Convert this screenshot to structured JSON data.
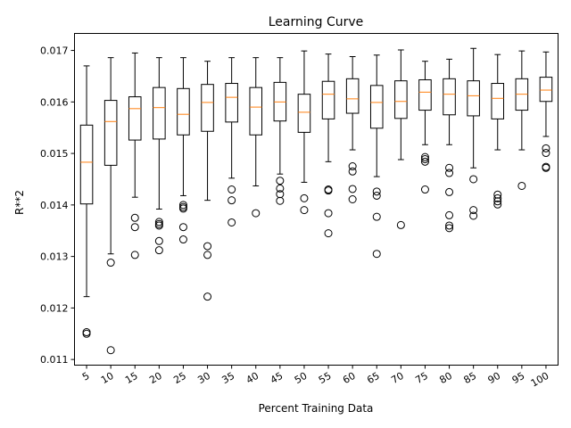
{
  "chart_data": {
    "type": "box",
    "title": "Learning Curve",
    "xlabel": "Percent Training Data",
    "ylabel": "R**2",
    "ylim": [
      0.01089,
      0.01733
    ],
    "yticks": [
      "0.011",
      "0.012",
      "0.013",
      "0.014",
      "0.015",
      "0.016",
      "0.017"
    ],
    "categories": [
      "5",
      "10",
      "15",
      "20",
      "25",
      "30",
      "35",
      "40",
      "45",
      "50",
      "55",
      "60",
      "65",
      "70",
      "75",
      "80",
      "85",
      "90",
      "95",
      "100"
    ],
    "boxes": [
      {
        "whislo": 0.01222,
        "q1": 0.01402,
        "med": 0.01483,
        "q3": 0.01555,
        "whishi": 0.0167,
        "fliers": [
          0.0115,
          0.01153
        ]
      },
      {
        "whislo": 0.01305,
        "q1": 0.01477,
        "med": 0.01562,
        "q3": 0.01603,
        "whishi": 0.01686,
        "fliers": [
          0.01288,
          0.01118
        ]
      },
      {
        "whislo": 0.01415,
        "q1": 0.01526,
        "med": 0.01587,
        "q3": 0.0161,
        "whishi": 0.01695,
        "fliers": [
          0.01375,
          0.01357,
          0.01303
        ]
      },
      {
        "whislo": 0.01392,
        "q1": 0.01528,
        "med": 0.01589,
        "q3": 0.01628,
        "whishi": 0.01686,
        "fliers": [
          0.01367,
          0.01363,
          0.0136,
          0.0133,
          0.01312
        ]
      },
      {
        "whislo": 0.01418,
        "q1": 0.01536,
        "med": 0.01576,
        "q3": 0.01626,
        "whishi": 0.01686,
        "fliers": [
          0.014,
          0.01396,
          0.01393,
          0.01357,
          0.01333
        ]
      },
      {
        "whislo": 0.01409,
        "q1": 0.01543,
        "med": 0.01599,
        "q3": 0.01634,
        "whishi": 0.01679,
        "fliers": [
          0.0132,
          0.01303,
          0.01222
        ]
      },
      {
        "whislo": 0.01452,
        "q1": 0.01561,
        "med": 0.01609,
        "q3": 0.01636,
        "whishi": 0.01686,
        "fliers": [
          0.0143,
          0.01409,
          0.01366
        ]
      },
      {
        "whislo": 0.01437,
        "q1": 0.01536,
        "med": 0.0159,
        "q3": 0.01628,
        "whishi": 0.01686,
        "fliers": [
          0.01384
        ]
      },
      {
        "whislo": 0.0146,
        "q1": 0.01563,
        "med": 0.016,
        "q3": 0.01638,
        "whishi": 0.01686,
        "fliers": [
          0.01447,
          0.01432,
          0.01421,
          0.01408
        ]
      },
      {
        "whislo": 0.01444,
        "q1": 0.01541,
        "med": 0.0158,
        "q3": 0.01615,
        "whishi": 0.01699,
        "fliers": [
          0.01413,
          0.0139
        ]
      },
      {
        "whislo": 0.01484,
        "q1": 0.01567,
        "med": 0.01615,
        "q3": 0.0164,
        "whishi": 0.01693,
        "fliers": [
          0.0143,
          0.01428,
          0.01384,
          0.01345
        ]
      },
      {
        "whislo": 0.01507,
        "q1": 0.01578,
        "med": 0.01606,
        "q3": 0.01645,
        "whishi": 0.01688,
        "fliers": [
          0.01475,
          0.01465,
          0.01431,
          0.01411
        ]
      },
      {
        "whislo": 0.01455,
        "q1": 0.01549,
        "med": 0.01599,
        "q3": 0.01632,
        "whishi": 0.01691,
        "fliers": [
          0.01426,
          0.01418,
          0.01377,
          0.01305
        ]
      },
      {
        "whislo": 0.01488,
        "q1": 0.01568,
        "med": 0.01601,
        "q3": 0.01641,
        "whishi": 0.01701,
        "fliers": [
          0.01361
        ]
      },
      {
        "whislo": 0.01517,
        "q1": 0.01584,
        "med": 0.01619,
        "q3": 0.01643,
        "whishi": 0.01679,
        "fliers": [
          0.01493,
          0.01489,
          0.01484,
          0.0143
        ]
      },
      {
        "whislo": 0.01517,
        "q1": 0.01575,
        "med": 0.01615,
        "q3": 0.01645,
        "whishi": 0.01683,
        "fliers": [
          0.01472,
          0.01462,
          0.01425,
          0.0138,
          0.0136,
          0.01355
        ]
      },
      {
        "whislo": 0.01472,
        "q1": 0.01573,
        "med": 0.01612,
        "q3": 0.01641,
        "whishi": 0.01704,
        "fliers": [
          0.0145,
          0.0139,
          0.01379
        ]
      },
      {
        "whislo": 0.01507,
        "q1": 0.01567,
        "med": 0.01607,
        "q3": 0.01636,
        "whishi": 0.01692,
        "fliers": [
          0.0142,
          0.01413,
          0.01407,
          0.01401
        ]
      },
      {
        "whislo": 0.01507,
        "q1": 0.01584,
        "med": 0.01615,
        "q3": 0.01645,
        "whishi": 0.01699,
        "fliers": [
          0.01437
        ]
      },
      {
        "whislo": 0.01533,
        "q1": 0.01601,
        "med": 0.01623,
        "q3": 0.01648,
        "whishi": 0.01697,
        "fliers": [
          0.0151,
          0.01501,
          0.01474,
          0.01472
        ]
      }
    ],
    "colors": {
      "box": "#000000",
      "median": "#ff7f0e",
      "flier": "#000000"
    },
    "grid": false,
    "legend": "none"
  }
}
